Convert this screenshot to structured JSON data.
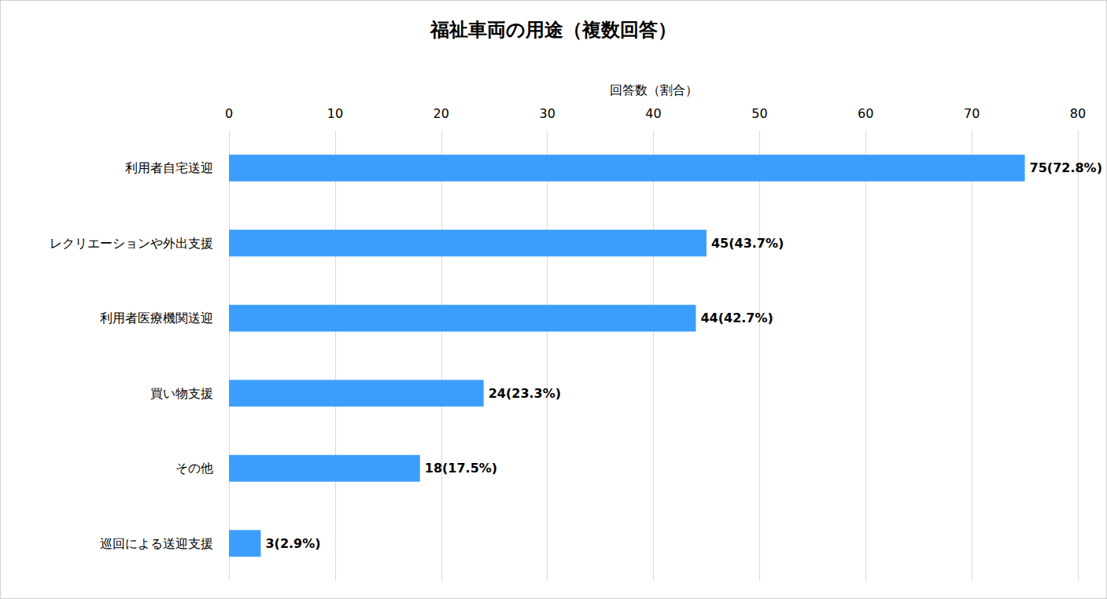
{
  "chart_data": {
    "type": "bar",
    "title": "福祉車両の用途（複数回答）",
    "xlabel": "回答数（割合）",
    "orientation": "horizontal",
    "categories": [
      "利用者自宅送迎",
      "レクリエーションや外出支援",
      "利用者医療機関送迎",
      "買い物支援",
      "その他",
      "巡回による送迎支援"
    ],
    "values": [
      75,
      45,
      44,
      24,
      18,
      3
    ],
    "value_labels": [
      "75(72.8%)",
      "45(43.7%)",
      "44(42.7%)",
      "24(23.3%)",
      "18(17.5%)",
      "3(2.9%)"
    ],
    "color": "#3c9efc",
    "xlim": [
      0,
      80
    ],
    "xticks": [
      0,
      10,
      20,
      30,
      40,
      50,
      60,
      70,
      80
    ],
    "grid": true,
    "data_labels": true
  }
}
